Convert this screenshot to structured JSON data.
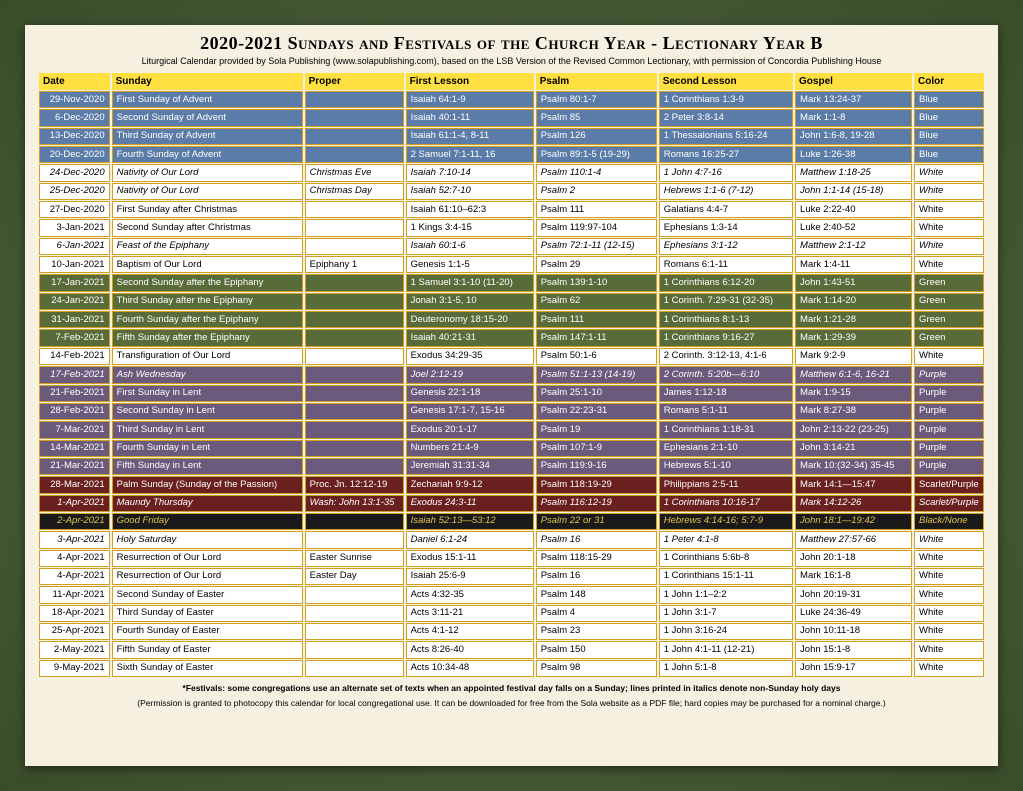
{
  "title": "2020-2021 Sundays and Festivals of the Church Year - Lectionary Year B",
  "subtitle": "Liturgical Calendar provided by Sola Publishing (www.solapublishing.com), based on the LSB Version of the Revised Common Lectionary, with permission of Concordia Publishing House",
  "columns": [
    "Date",
    "Sunday",
    "Proper",
    "First Lesson",
    "Psalm",
    "Second Lesson",
    "Gospel",
    "Color"
  ],
  "color_schemes": {
    "blue": {
      "bg": "#5b7ca8",
      "fg": "#ffffff"
    },
    "white": {
      "bg": "#ffffff",
      "fg": "#000000"
    },
    "green": {
      "bg": "#5a6b3a",
      "fg": "#ffffff"
    },
    "purple": {
      "bg": "#6b5a7b",
      "fg": "#ffffff"
    },
    "scarlet": {
      "bg": "#6b2020",
      "fg": "#ffffff"
    },
    "black": {
      "bg": "#1a1a1a",
      "fg": "#e0c050"
    }
  },
  "rows": [
    {
      "scheme": "blue",
      "italic": false,
      "cells": [
        "29-Nov-2020",
        "First Sunday of Advent",
        "",
        "Isaiah 64:1-9",
        "Psalm 80:1-7",
        "1 Corinthians 1:3-9",
        "Mark 13:24-37",
        "Blue"
      ]
    },
    {
      "scheme": "blue",
      "italic": false,
      "cells": [
        "6-Dec-2020",
        "Second Sunday of Advent",
        "",
        "Isaiah 40:1-11",
        "Psalm 85",
        "2  Peter 3:8-14",
        "Mark 1:1-8",
        "Blue"
      ]
    },
    {
      "scheme": "blue",
      "italic": false,
      "cells": [
        "13-Dec-2020",
        "Third Sunday of Advent",
        "",
        "Isaiah 61:1-4, 8-11",
        "Psalm 126",
        "1 Thessalonians 5:16-24",
        "John 1:6-8, 19-28",
        "Blue"
      ]
    },
    {
      "scheme": "blue",
      "italic": false,
      "cells": [
        "20-Dec-2020",
        "Fourth Sunday of Advent",
        "",
        "2 Samuel 7:1-11, 16",
        "Psalm 89:1-5 (19-29)",
        "Romans 16:25-27",
        "Luke 1:26-38",
        "Blue"
      ]
    },
    {
      "scheme": "white",
      "italic": true,
      "cells": [
        "24-Dec-2020",
        "Nativity of Our Lord",
        "Christmas Eve",
        "Isaiah 7:10-14",
        "Psalm 110:1-4",
        "1 John 4:7-16",
        "Matthew 1:18-25",
        "White"
      ]
    },
    {
      "scheme": "white",
      "italic": true,
      "cells": [
        "25-Dec-2020",
        "Nativity of Our Lord",
        "Christmas Day",
        "Isaiah 52:7-10",
        "Psalm 2",
        "Hebrews 1:1-6 (7-12)",
        "John 1:1-14 (15-18)",
        "White"
      ]
    },
    {
      "scheme": "white",
      "italic": false,
      "cells": [
        "27-Dec-2020",
        "First Sunday after Christmas",
        "",
        "Isaiah 61:10–62:3",
        "Psalm 111",
        "Galatians 4:4-7",
        "Luke 2:22-40",
        "White"
      ]
    },
    {
      "scheme": "white",
      "italic": false,
      "cells": [
        "3-Jan-2021",
        "Second Sunday after Christmas",
        "",
        "1 Kings 3:4-15",
        "Psalm 119:97-104",
        "Ephesians 1:3-14",
        "Luke 2:40-52",
        "White"
      ]
    },
    {
      "scheme": "white",
      "italic": true,
      "cells": [
        "6-Jan-2021",
        "Feast of the Epiphany",
        "",
        "Isaiah 60:1-6",
        "Psalm 72:1-11 (12-15)",
        "Ephesians 3:1-12",
        "Matthew 2:1-12",
        "White"
      ]
    },
    {
      "scheme": "white",
      "italic": false,
      "cells": [
        "10-Jan-2021",
        "Baptism of Our Lord",
        "Epiphany 1",
        "Genesis 1:1-5",
        "Psalm 29",
        "Romans 6:1-11",
        "Mark 1:4-11",
        "White"
      ]
    },
    {
      "scheme": "green",
      "italic": false,
      "cells": [
        "17-Jan-2021",
        "Second Sunday after the Epiphany",
        "",
        "1 Samuel 3:1-10 (11-20)",
        "Psalm 139:1-10",
        "1 Corinthians 6:12-20",
        "John 1:43-51",
        "Green"
      ]
    },
    {
      "scheme": "green",
      "italic": false,
      "cells": [
        "24-Jan-2021",
        "Third Sunday after the Epiphany",
        "",
        "Jonah 3:1-5, 10",
        "Psalm 62",
        "1 Corinth. 7:29-31 (32-35)",
        "Mark 1:14-20",
        "Green"
      ]
    },
    {
      "scheme": "green",
      "italic": false,
      "cells": [
        "31-Jan-2021",
        "Fourth Sunday after the Epiphany",
        "",
        "Deuteronomy 18:15-20",
        "Psalm 111",
        "1 Corinthians 8:1-13",
        "Mark 1:21-28",
        "Green"
      ]
    },
    {
      "scheme": "green",
      "italic": false,
      "cells": [
        "7-Feb-2021",
        "Fifth Sunday after the Epiphany",
        "",
        "Isaiah 40:21-31",
        "Psalm 147:1-11",
        "1 Corinthians 9:16-27",
        "Mark 1:29-39",
        "Green"
      ]
    },
    {
      "scheme": "white",
      "italic": false,
      "cells": [
        "14-Feb-2021",
        "Transfiguration of Our Lord",
        "",
        "Exodus 34:29-35",
        "Psalm 50:1-6",
        "2 Corinth. 3:12-13, 4:1-6",
        "Mark 9:2-9",
        "White"
      ]
    },
    {
      "scheme": "purple",
      "italic": true,
      "cells": [
        "17-Feb-2021",
        "Ash Wednesday",
        "",
        "Joel 2:12-19",
        "Psalm 51:1-13 (14-19)",
        "2 Corinth. 5:20b—6:10",
        "Matthew 6:1-6, 16-21",
        "Purple"
      ]
    },
    {
      "scheme": "purple",
      "italic": false,
      "cells": [
        "21-Feb-2021",
        "First Sunday in Lent",
        "",
        "Genesis 22:1-18",
        "Psalm 25:1-10",
        "James 1:12-18",
        "Mark 1:9-15",
        "Purple"
      ]
    },
    {
      "scheme": "purple",
      "italic": false,
      "cells": [
        "28-Feb-2021",
        "Second Sunday in Lent",
        "",
        "Genesis 17:1-7, 15-16",
        "Psalm 22:23-31",
        "Romans 5:1-11",
        "Mark 8:27-38",
        "Purple"
      ]
    },
    {
      "scheme": "purple",
      "italic": false,
      "cells": [
        "7-Mar-2021",
        "Third Sunday in Lent",
        "",
        "Exodus 20:1-17",
        "Psalm 19",
        "1 Corinthians 1:18-31",
        "John 2:13-22 (23-25)",
        "Purple"
      ]
    },
    {
      "scheme": "purple",
      "italic": false,
      "cells": [
        "14-Mar-2021",
        "Fourth Sunday in Lent",
        "",
        "Numbers 21:4-9",
        "Psalm 107:1-9",
        "Ephesians 2:1-10",
        "John 3:14-21",
        "Purple"
      ]
    },
    {
      "scheme": "purple",
      "italic": false,
      "cells": [
        "21-Mar-2021",
        "Fifth Sunday in Lent",
        "",
        "Jeremiah 31:31-34",
        "Psalm 119:9-16",
        "Hebrews 5:1-10",
        "Mark 10:(32-34) 35-45",
        "Purple"
      ]
    },
    {
      "scheme": "scarlet",
      "italic": false,
      "cells": [
        "28-Mar-2021",
        "Palm Sunday (Sunday of the Passion)",
        "Proc. Jn. 12:12-19",
        "Zechariah 9:9-12",
        "Psalm 118:19-29",
        "Philippians 2:5-11",
        "Mark 14:1—15:47",
        "Scarlet/Purple"
      ]
    },
    {
      "scheme": "scarlet",
      "italic": true,
      "cells": [
        "1-Apr-2021",
        "Maundy Thursday",
        "Wash: John 13:1-35",
        "Exodus 24:3-11",
        "Psalm 116:12-19",
        "1 Corinthians 10:16-17",
        "Mark 14:12-26",
        "Scarlet/Purple"
      ]
    },
    {
      "scheme": "black",
      "italic": true,
      "cells": [
        "2-Apr-2021",
        "Good Friday",
        "",
        "Isaiah 52:13—53:12",
        "Psalm 22 or 31",
        "Hebrews 4:14-16; 5:7-9",
        "John 18:1—19:42",
        "Black/None"
      ]
    },
    {
      "scheme": "white",
      "italic": true,
      "cells": [
        "3-Apr-2021",
        "Holy Saturday",
        "",
        "Daniel 6:1-24",
        "Psalm 16",
        "1 Peter 4:1-8",
        "Matthew 27:57-66",
        "White"
      ]
    },
    {
      "scheme": "white",
      "italic": false,
      "cells": [
        "4-Apr-2021",
        "Resurrection of Our Lord",
        "Easter Sunrise",
        "Exodus 15:1-11",
        "Psalm 118:15-29",
        "1 Corinthians 5:6b-8",
        "John 20:1-18",
        "White"
      ]
    },
    {
      "scheme": "white",
      "italic": false,
      "cells": [
        "4-Apr-2021",
        "Resurrection of Our Lord",
        "Easter Day",
        "Isaiah 25:6-9",
        "Psalm 16",
        "1 Corinthians 15:1-11",
        "Mark 16:1-8",
        "White"
      ]
    },
    {
      "scheme": "white",
      "italic": false,
      "cells": [
        "11-Apr-2021",
        "Second Sunday of Easter",
        "",
        "Acts 4:32-35",
        "Psalm 148",
        "1 John 1:1–2:2",
        "John 20:19-31",
        "White"
      ]
    },
    {
      "scheme": "white",
      "italic": false,
      "cells": [
        "18-Apr-2021",
        "Third Sunday of Easter",
        "",
        "Acts 3:11-21",
        "Psalm 4",
        "1 John 3:1-7",
        "Luke 24:36-49",
        "White"
      ]
    },
    {
      "scheme": "white",
      "italic": false,
      "cells": [
        "25-Apr-2021",
        "Fourth Sunday of Easter",
        "",
        "Acts 4:1-12",
        "Psalm 23",
        "1 John 3:16-24",
        "John 10:11-18",
        "White"
      ]
    },
    {
      "scheme": "white",
      "italic": false,
      "cells": [
        "2-May-2021",
        "Fifth Sunday of Easter",
        "",
        "Acts 8:26-40",
        "Psalm 150",
        "1 John 4:1-11 (12-21)",
        "John 15:1-8",
        "White"
      ]
    },
    {
      "scheme": "white",
      "italic": false,
      "cells": [
        "9-May-2021",
        "Sixth Sunday of Easter",
        "",
        "Acts 10:34-48",
        "Psalm 98",
        "1 John 5:1-8",
        "John 15:9-17",
        "White"
      ]
    }
  ],
  "footnote1": "*Festivals: some congregations use an alternate set of texts when an appointed festival day falls on a Sunday; lines printed in italics denote non-Sunday holy days",
  "footnote2": "(Permission is granted to photocopy this calendar for local congregational use. It can be downloaded for free from the Sola website as a PDF file; hard copies may be purchased for a nominal charge.)"
}
